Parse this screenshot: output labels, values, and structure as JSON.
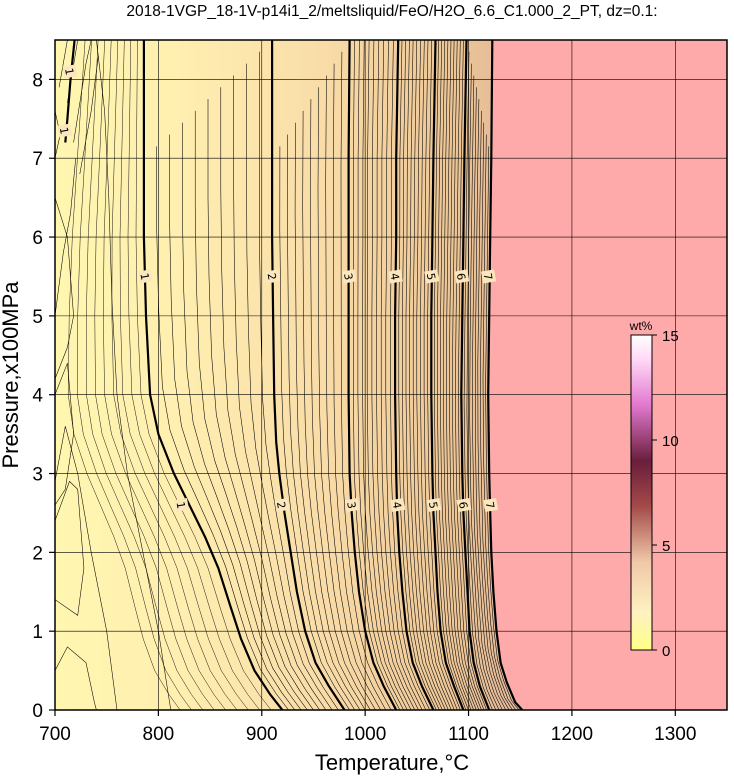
{
  "chart_data": {
    "type": "contour",
    "title": "2018-1VGP_18-1V-p14i1_2/meltsliquid/FeO/H2O_6.6_C1.000_2_PT, dz=0.1:",
    "xlabel": "Temperature,°C",
    "ylabel": "Pressure,x100MPa",
    "xlim": [
      700,
      1350
    ],
    "ylim": [
      0,
      8.5
    ],
    "x_ticks": [
      700,
      800,
      900,
      1000,
      1100,
      1200,
      1300
    ],
    "y_ticks": [
      0,
      1,
      2,
      3,
      4,
      5,
      6,
      7,
      8
    ],
    "grid": true,
    "contour_interval": 0.1,
    "major_contours": [
      {
        "level": 1,
        "label": "1",
        "points": [
          [
            719,
            8.5
          ],
          [
            715,
            8.0
          ],
          [
            712,
            7.5
          ],
          [
            710,
            7.2
          ]
        ]
      },
      {
        "level": 1,
        "label": "1",
        "points": [
          [
            786,
            8.5
          ],
          [
            786,
            7.0
          ],
          [
            786,
            6.0
          ],
          [
            788,
            5.0
          ],
          [
            792,
            4.0
          ],
          [
            800,
            3.5
          ],
          [
            815,
            3.0
          ],
          [
            830,
            2.6
          ],
          [
            845,
            2.2
          ],
          [
            858,
            1.8
          ],
          [
            870,
            1.3
          ],
          [
            880,
            0.9
          ],
          [
            893,
            0.5
          ],
          [
            908,
            0.2
          ],
          [
            920,
            0.0
          ]
        ]
      },
      {
        "level": 2,
        "label": "2",
        "points": [
          [
            910,
            8.5
          ],
          [
            910,
            7.0
          ],
          [
            910,
            6.0
          ],
          [
            911,
            5.0
          ],
          [
            912,
            4.0
          ],
          [
            914,
            3.4
          ],
          [
            917,
            3.0
          ],
          [
            922,
            2.5
          ],
          [
            928,
            2.0
          ],
          [
            934,
            1.5
          ],
          [
            942,
            1.0
          ],
          [
            952,
            0.6
          ],
          [
            965,
            0.3
          ],
          [
            980,
            0.0
          ]
        ]
      },
      {
        "level": 3,
        "label": "3",
        "points": [
          [
            985,
            8.5
          ],
          [
            984,
            7.0
          ],
          [
            984,
            6.0
          ],
          [
            984,
            5.0
          ],
          [
            984,
            4.0
          ],
          [
            985,
            3.0
          ],
          [
            987,
            2.5
          ],
          [
            990,
            2.0
          ],
          [
            994,
            1.5
          ],
          [
            1000,
            1.0
          ],
          [
            1008,
            0.6
          ],
          [
            1018,
            0.3
          ],
          [
            1030,
            0.0
          ]
        ]
      },
      {
        "level": 4,
        "label": "4",
        "points": [
          [
            1032,
            8.5
          ],
          [
            1030,
            7.0
          ],
          [
            1030,
            6.0
          ],
          [
            1029,
            5.0
          ],
          [
            1029,
            4.0
          ],
          [
            1030,
            3.0
          ],
          [
            1031,
            2.5
          ],
          [
            1033,
            2.0
          ],
          [
            1036,
            1.5
          ],
          [
            1040,
            1.0
          ],
          [
            1046,
            0.6
          ],
          [
            1055,
            0.3
          ],
          [
            1066,
            0.0
          ]
        ]
      },
      {
        "level": 5,
        "label": "5",
        "points": [
          [
            1068,
            8.5
          ],
          [
            1066,
            7.0
          ],
          [
            1065,
            6.0
          ],
          [
            1064,
            5.0
          ],
          [
            1064,
            4.0
          ],
          [
            1065,
            3.0
          ],
          [
            1066,
            2.5
          ],
          [
            1068,
            2.0
          ],
          [
            1070,
            1.5
          ],
          [
            1073,
            1.0
          ],
          [
            1078,
            0.6
          ],
          [
            1086,
            0.3
          ],
          [
            1095,
            0.0
          ]
        ]
      },
      {
        "level": 6,
        "label": "6",
        "points": [
          [
            1098,
            8.5
          ],
          [
            1096,
            7.0
          ],
          [
            1095,
            6.0
          ],
          [
            1094,
            5.0
          ],
          [
            1093,
            4.0
          ],
          [
            1094,
            3.0
          ],
          [
            1095,
            2.5
          ],
          [
            1097,
            2.0
          ],
          [
            1099,
            1.5
          ],
          [
            1101,
            1.0
          ],
          [
            1105,
            0.6
          ],
          [
            1111,
            0.3
          ],
          [
            1120,
            0.0
          ]
        ]
      },
      {
        "level": 7,
        "label": "7",
        "points": [
          [
            1123,
            8.5
          ],
          [
            1122,
            7.0
          ],
          [
            1121,
            6.0
          ],
          [
            1120,
            5.0
          ],
          [
            1119,
            4.0
          ],
          [
            1120,
            3.0
          ],
          [
            1121,
            2.5
          ],
          [
            1122,
            2.0
          ],
          [
            1124,
            1.5
          ],
          [
            1127,
            1.0
          ],
          [
            1131,
            0.6
          ],
          [
            1137,
            0.35
          ],
          [
            1145,
            0.1
          ],
          [
            1152,
            0.0
          ]
        ]
      }
    ],
    "contour_labels": [
      {
        "text": "1",
        "x": 714,
        "y": 8.1
      },
      {
        "text": "1",
        "x": 709,
        "y": 7.35
      },
      {
        "text": "1",
        "x": 787,
        "y": 5.5
      },
      {
        "text": "1",
        "x": 822,
        "y": 2.6
      },
      {
        "text": "2",
        "x": 910,
        "y": 5.5
      },
      {
        "text": "2",
        "x": 919,
        "y": 2.6
      },
      {
        "text": "3",
        "x": 984,
        "y": 5.5
      },
      {
        "text": "3",
        "x": 987,
        "y": 2.6
      },
      {
        "text": "4",
        "x": 1029,
        "y": 5.5
      },
      {
        "text": "4",
        "x": 1031,
        "y": 2.6
      },
      {
        "text": "5",
        "x": 1064,
        "y": 5.5
      },
      {
        "text": "5",
        "x": 1066,
        "y": 2.6
      },
      {
        "text": "6",
        "x": 1093,
        "y": 5.5
      },
      {
        "text": "6",
        "x": 1095,
        "y": 2.6
      },
      {
        "text": "7",
        "x": 1119,
        "y": 5.5
      },
      {
        "text": "7",
        "x": 1121,
        "y": 2.6
      }
    ],
    "no_data_region_color": "#ffaaaa",
    "colorbar": {
      "label": "wt%",
      "range": [
        0,
        15
      ],
      "ticks": [
        0,
        5,
        10,
        15
      ],
      "colors": [
        "#ffff66",
        "#ffe0b0",
        "#a05050",
        "#5a1a3a",
        "#ff99ee",
        "#ffffff"
      ]
    }
  }
}
